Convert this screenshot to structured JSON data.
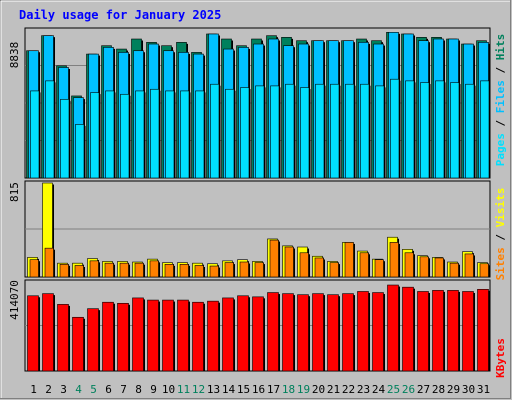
{
  "title": "Daily usage for January 2025",
  "colors": {
    "background": "#c0c0c0",
    "title": "#0000ff",
    "hits": "#00805c",
    "files": "#00c0ff",
    "pages": "#00e0ff",
    "visits": "#ffff00",
    "sites": "#ff8000",
    "kbytes": "#ff0000",
    "weekend_day": "#00805c"
  },
  "panel_max_labels": {
    "top": "8838",
    "middle": "815",
    "bottom": "414070"
  },
  "legend": {
    "top": [
      "Pages",
      "Files",
      "Hits"
    ],
    "middle": [
      "Sites",
      "Visits"
    ],
    "bottom": [
      "KBytes"
    ]
  },
  "chart_data": {
    "type": "bar",
    "title": "Daily usage for January 2025",
    "categories": [
      "1",
      "2",
      "3",
      "4",
      "5",
      "6",
      "7",
      "8",
      "9",
      "10",
      "11",
      "12",
      "13",
      "14",
      "15",
      "16",
      "17",
      "18",
      "19",
      "20",
      "21",
      "22",
      "23",
      "24",
      "25",
      "26",
      "27",
      "28",
      "29",
      "30",
      "31"
    ],
    "weekend_days": [
      "4",
      "5",
      "11",
      "12",
      "18",
      "19",
      "25",
      "26"
    ],
    "panels": [
      {
        "name": "top",
        "ylim": [
          0,
          8838
        ],
        "series": [
          {
            "name": "Hits",
            "values": [
              7600,
              8500,
              6700,
              4900,
              7400,
              7900,
              7700,
              8300,
              8100,
              7900,
              8100,
              7500,
              8600,
              8300,
              7900,
              8300,
              8500,
              8400,
              8200,
              8200,
              8200,
              8200,
              8300,
              8200,
              8700,
              8600,
              8400,
              8400,
              8300,
              8000,
              8200
            ]
          },
          {
            "name": "Files",
            "values": [
              7600,
              8500,
              6600,
              4800,
              7400,
              7800,
              7500,
              7600,
              8000,
              7600,
              7500,
              7400,
              8600,
              7700,
              7800,
              8000,
              8300,
              7900,
              8000,
              8200,
              8200,
              8200,
              8100,
              8000,
              8700,
              8600,
              8200,
              8300,
              8300,
              8000,
              8100
            ]
          },
          {
            "name": "Pages",
            "values": [
              5200,
              5800,
              4700,
              3200,
              5100,
              5200,
              5000,
              5200,
              5300,
              5200,
              5200,
              5200,
              5600,
              5300,
              5400,
              5500,
              5500,
              5600,
              5400,
              5600,
              5600,
              5600,
              5600,
              5500,
              5900,
              5800,
              5700,
              5800,
              5700,
              5600,
              5800
            ]
          }
        ]
      },
      {
        "name": "middle",
        "ylim": [
          0,
          815
        ],
        "series": [
          {
            "name": "Visits",
            "values": [
              170,
              815,
              120,
              120,
              160,
              135,
              135,
              130,
              155,
              125,
              125,
              120,
              115,
              140,
              150,
              135,
              330,
              270,
              260,
              180,
              135,
              300,
              225,
              155,
              345,
              240,
              185,
              170,
              130,
              220,
              125
            ]
          },
          {
            "name": "Sites",
            "values": [
              150,
              250,
              110,
              100,
              140,
              120,
              120,
              120,
              140,
              110,
              110,
              100,
              95,
              125,
              130,
              125,
              320,
              260,
              210,
              165,
              125,
              300,
              210,
              150,
              300,
              210,
              175,
              165,
              120,
              200,
              115
            ]
          }
        ]
      },
      {
        "name": "bottom",
        "ylim": [
          0,
          414070
        ],
        "series": [
          {
            "name": "KBytes",
            "values": [
              350000,
              360000,
              310000,
              250000,
              290000,
              320000,
              315000,
              340000,
              330000,
              330000,
              330000,
              320000,
              325000,
              340000,
              350000,
              345000,
              365000,
              360000,
              355000,
              360000,
              355000,
              360000,
              370000,
              365000,
              400000,
              390000,
              370000,
              375000,
              375000,
              370000,
              380000
            ]
          }
        ]
      }
    ]
  }
}
